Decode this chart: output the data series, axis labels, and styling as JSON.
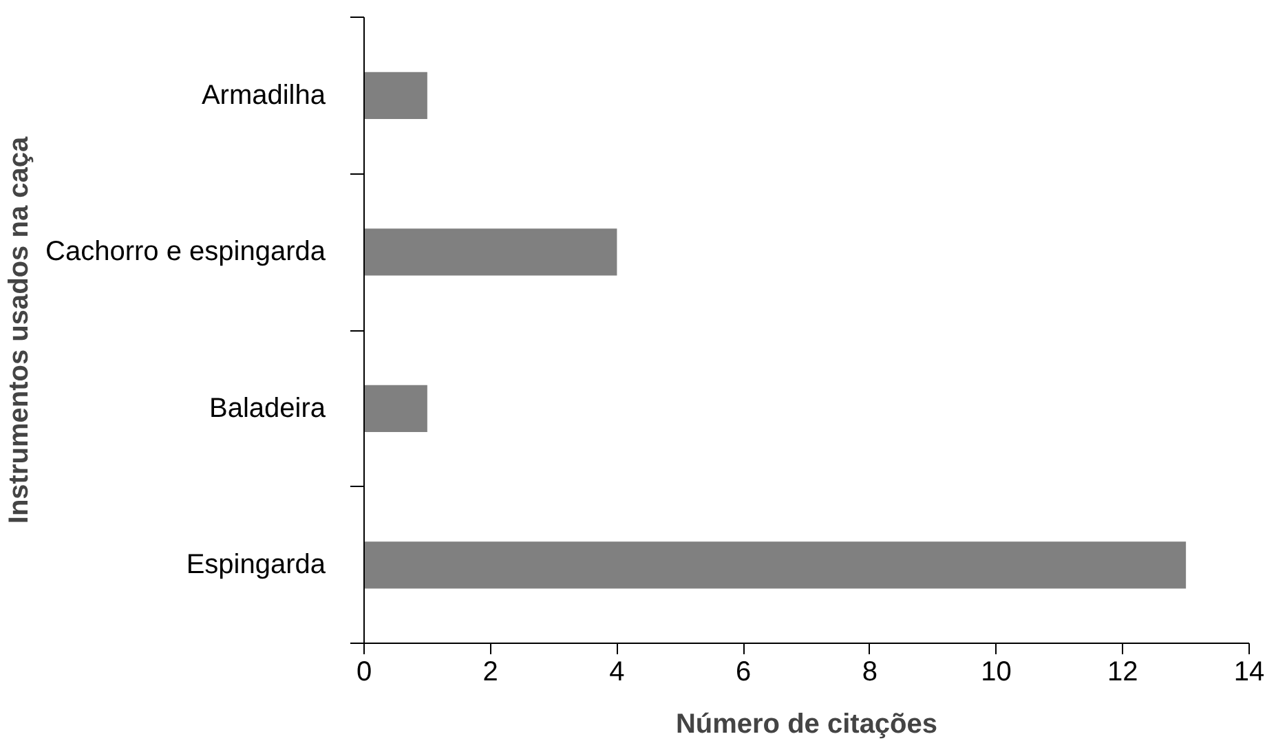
{
  "chart_data": {
    "type": "bar",
    "orientation": "horizontal",
    "xlabel": "Número de citações",
    "ylabel": "Instrumentos usados na caça",
    "categories": [
      "Armadilha",
      "Cachorro e espingarda",
      "Baladeira",
      "Espingarda"
    ],
    "values": [
      1,
      4,
      1,
      13
    ],
    "color": "#808080",
    "xlim": [
      0,
      14
    ],
    "xticks": [
      0,
      2,
      4,
      6,
      8,
      10,
      12,
      14
    ],
    "grid": false
  }
}
